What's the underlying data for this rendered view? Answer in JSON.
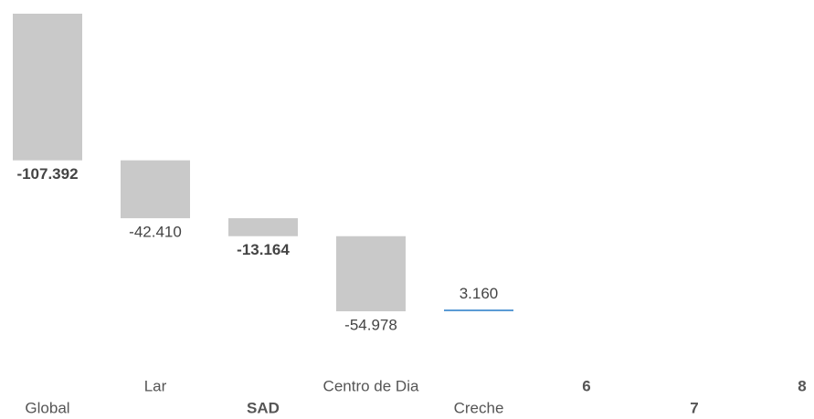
{
  "chart_data": {
    "type": "waterfall",
    "categories": [
      "Global",
      "Lar",
      "SAD",
      "Centro de Dia",
      "Creche",
      "6",
      "7",
      "8"
    ],
    "values": [
      -107392,
      -42410,
      -13164,
      -54978,
      3160,
      null,
      null,
      null
    ],
    "value_labels": [
      "-107.392",
      "-42.410",
      "-13.164",
      "-54.978",
      "3.160",
      null,
      null,
      null
    ],
    "colors": {
      "negative": "#c9c9c9",
      "positive": "#5b9bd5"
    }
  }
}
